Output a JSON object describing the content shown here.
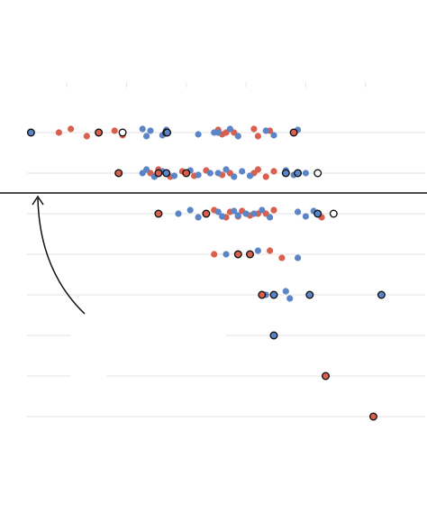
{
  "chart_data": {
    "type": "scatter",
    "description_free": true,
    "xlim": [
      0,
      100
    ],
    "x_ticks": [
      10,
      25,
      40,
      55,
      70,
      85
    ],
    "rows": [
      {
        "segments": [
          [
            0,
            100
          ]
        ],
        "red": [
          8,
          11,
          15,
          22,
          24,
          48,
          49,
          50,
          52,
          57,
          58,
          61
        ],
        "blue": [
          1,
          29,
          30,
          31,
          34,
          35,
          43,
          47,
          48,
          51,
          53,
          60,
          62,
          68
        ],
        "red_outlined": [
          18,
          67
        ],
        "blue_outlined": [
          1,
          35,
          35.2
        ],
        "white_outlined": [
          24
        ]
      },
      {
        "segments": [
          [
            0,
            100
          ]
        ],
        "red": [
          31,
          33,
          36,
          39,
          42,
          45,
          49,
          51,
          57,
          58,
          60,
          62
        ],
        "blue": [
          29,
          30,
          32,
          34,
          37,
          41,
          43,
          46,
          48,
          50,
          52,
          54,
          56,
          65,
          67,
          70
        ],
        "red_outlined": [
          23,
          33,
          40
        ],
        "blue_outlined": [
          35,
          65,
          68
        ],
        "white_outlined": [
          73
        ]
      },
      {
        "segments": [
          [
            0,
            100
          ]
        ],
        "red": [
          33,
          47,
          50,
          51,
          53,
          54,
          56,
          58,
          60,
          62,
          74
        ],
        "blue": [
          38,
          41,
          43,
          48,
          49,
          52,
          53,
          55,
          57,
          59,
          61,
          68,
          70,
          72
        ],
        "red_outlined": [
          33,
          45
        ],
        "blue_outlined": [
          73
        ],
        "white_outlined": [
          77
        ]
      },
      {
        "segments": [
          [
            0,
            100
          ]
        ],
        "red": [
          47,
          61,
          64
        ],
        "blue": [
          50,
          58,
          68
        ],
        "red_outlined": [
          53,
          56
        ],
        "blue_outlined": [],
        "white_outlined": []
      },
      {
        "segments": [
          [
            0,
            100
          ]
        ],
        "red": [
          62
        ],
        "blue": [
          60,
          65,
          66
        ],
        "red_outlined": [
          59
        ],
        "blue_outlined": [
          62,
          71,
          89
        ],
        "white_outlined": []
      },
      {
        "segments": [
          [
            0,
            11
          ],
          [
            50,
            100
          ]
        ],
        "red": [],
        "blue": [],
        "red_outlined": [],
        "blue_outlined": [
          62
        ],
        "white_outlined": []
      },
      {
        "segments": [
          [
            0,
            11
          ],
          [
            20,
            100
          ]
        ],
        "red": [],
        "blue": [],
        "red_outlined": [
          75
        ],
        "blue_outlined": [],
        "white_outlined": []
      },
      {
        "segments": [
          [
            0,
            100
          ]
        ],
        "red": [],
        "blue": [],
        "red_outlined": [
          87
        ],
        "blue_outlined": [],
        "white_outlined": []
      }
    ],
    "colors": {
      "red": "#d9604f",
      "blue": "#5b85c6",
      "grid": "#e3e3e3",
      "separator": "#111111",
      "tick": "#e6e6e6"
    }
  }
}
